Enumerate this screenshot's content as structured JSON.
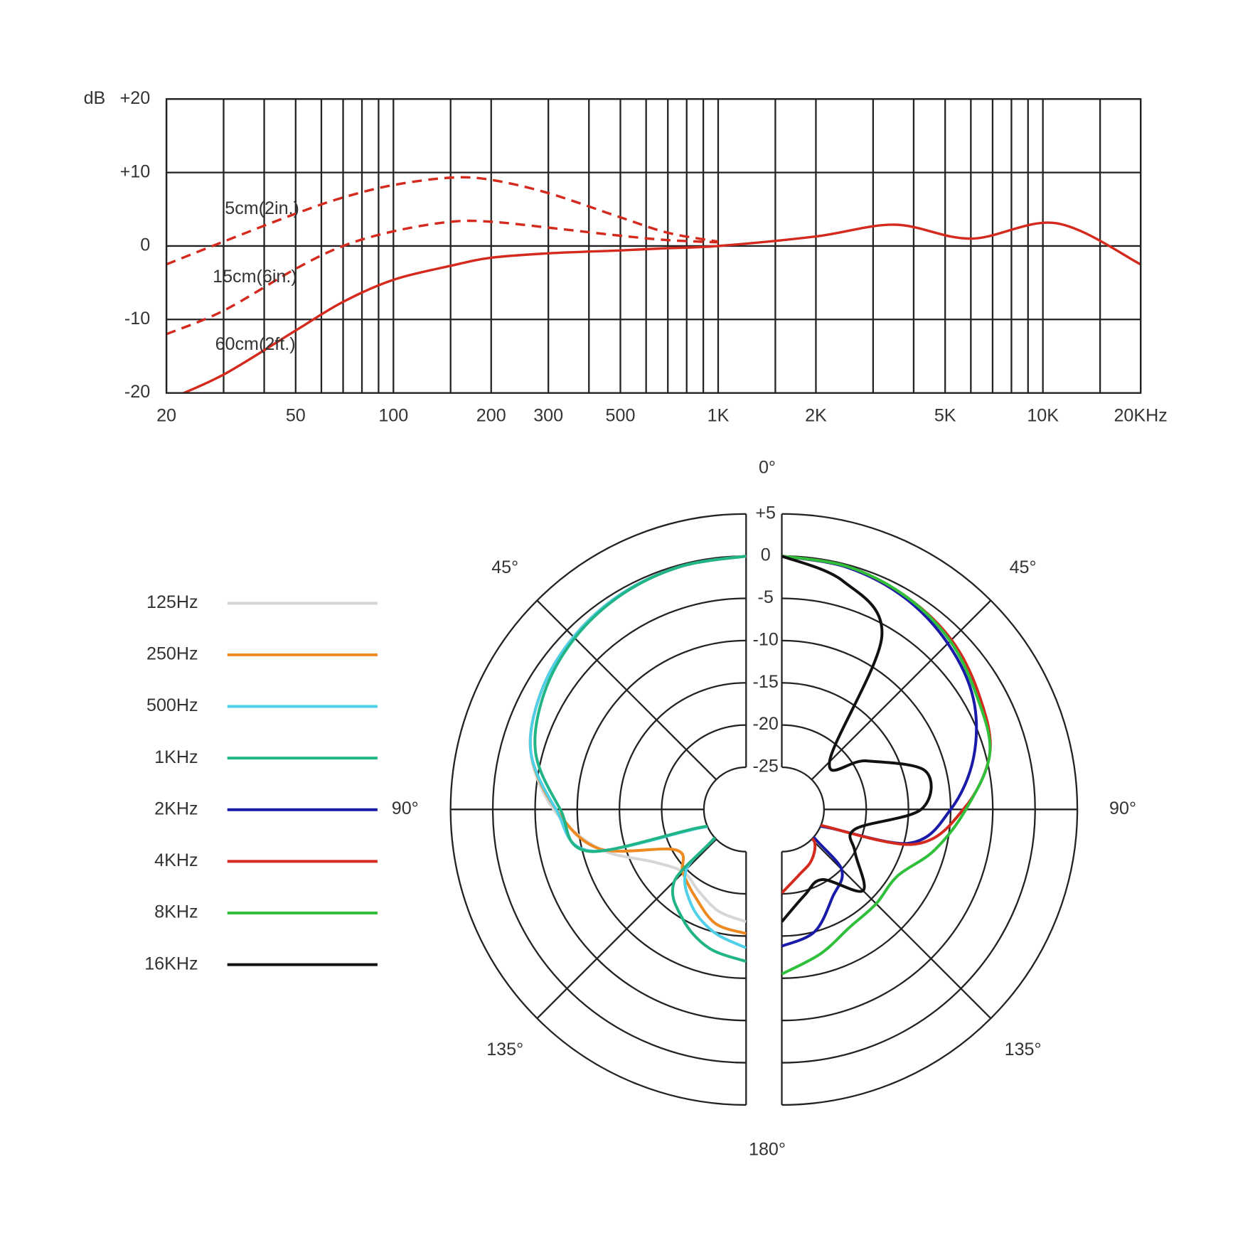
{
  "chart_data": [
    {
      "type": "line",
      "log_x": true,
      "grid": true,
      "y_label": "dB",
      "xlim": [
        20,
        20000
      ],
      "ylim": [
        -20,
        20
      ],
      "xticks": [
        20,
        50,
        100,
        200,
        300,
        500,
        {
          "value": 1000,
          "label": "1K"
        },
        {
          "value": 2000,
          "label": "2K"
        },
        {
          "value": 5000,
          "label": "5K"
        },
        {
          "value": 10000,
          "label": "10K"
        },
        {
          "value": 20000,
          "label": "20KHz"
        }
      ],
      "xminor_ticks": [
        30,
        40,
        60,
        70,
        80,
        90,
        150,
        400,
        600,
        700,
        800,
        900,
        1500,
        3000,
        4000,
        6000,
        7000,
        8000,
        9000,
        15000
      ],
      "yticks": [
        {
          "value": 20,
          "label": "+20"
        },
        {
          "value": 10,
          "label": "+10"
        },
        0,
        -10,
        -20
      ],
      "x": [
        20,
        30,
        50,
        70,
        100,
        150,
        200,
        300,
        500,
        700,
        1000,
        2000,
        3500,
        6000,
        11000,
        20000
      ],
      "series": [
        {
          "name": "5cm(2in.)",
          "color": "#d42a1e",
          "dashed": true,
          "values": [
            -2.5,
            0.6,
            4.4,
            6.6,
            8.3,
            9.3,
            9.0,
            7.2,
            3.9,
            1.8,
            0.6,
            null,
            null,
            null,
            null,
            null
          ]
        },
        {
          "name": "15cm(6in.)",
          "color": "#d42a1e",
          "dashed": true,
          "values": [
            -12,
            -8.8,
            -3.1,
            0,
            2.0,
            3.3,
            3.3,
            2.5,
            1.4,
            0.8,
            0.5,
            null,
            null,
            null,
            null,
            null
          ]
        },
        {
          "name": "60cm(2ft.)",
          "color": "#d42a1e",
          "dashed": false,
          "values": [
            -21,
            -17.5,
            -11.5,
            -7.6,
            -4.6,
            -2.7,
            -1.6,
            -1.0,
            -0.6,
            -0.3,
            0,
            1.3,
            2.9,
            1.0,
            3.1,
            -2.5
          ]
        }
      ]
    },
    {
      "type": "polar",
      "rlim": [
        -30,
        5
      ],
      "rticks": [
        {
          "value": 5,
          "label": "+5"
        },
        0,
        -5,
        -10,
        -15,
        -20,
        -25
      ],
      "thetaticks": [
        {
          "value": 0,
          "label": "0°"
        },
        {
          "value": 45,
          "label": "45°"
        },
        {
          "value": 90,
          "label": "90°"
        },
        {
          "value": 135,
          "label": "135°"
        },
        {
          "value": 180,
          "label": "180°"
        }
      ],
      "theta": [
        0,
        15,
        30,
        45,
        60,
        75,
        90,
        105,
        120,
        135,
        150,
        165,
        180
      ],
      "series": [
        {
          "name": "125Hz",
          "color": "#d6d6d6",
          "side": "left",
          "values": [
            0,
            -0.2,
            -0.5,
            -1.1,
            -2,
            -3.6,
            -7.2,
            -12,
            -17.5,
            -19.5,
            -18.8,
            -17.5,
            -16.7
          ]
        },
        {
          "name": "250Hz",
          "color": "#ee8a22",
          "side": "left",
          "values": [
            0,
            -0.2,
            -0.5,
            -1.1,
            -2,
            -3.6,
            -7.5,
            -12,
            -20.4,
            -19.4,
            -18,
            -16,
            -15.3
          ]
        },
        {
          "name": "500Hz",
          "color": "#4fd0e8",
          "side": "left",
          "values": [
            0,
            -0.2,
            -0.5,
            -1.1,
            -2,
            -3.6,
            -7.5,
            -11,
            -26,
            -20,
            -17,
            -15,
            -13.6
          ]
        },
        {
          "name": "1KHz",
          "color": "#20b487",
          "side": "left",
          "values": [
            0,
            -0.2,
            -0.6,
            -1.3,
            -2.4,
            -4.2,
            -8,
            -10.8,
            -26,
            -18,
            -15,
            -13,
            -12
          ]
        },
        {
          "name": "2KHz",
          "color": "#1a1aa8",
          "side": "right",
          "values": [
            0,
            -0.3,
            -1,
            -2.2,
            -3.8,
            -6.5,
            -10,
            -14.5,
            -26,
            -20,
            -18,
            -15,
            -13.8
          ]
        },
        {
          "name": "4KHz",
          "color": "#d42a1e",
          "side": "right",
          "values": [
            0,
            -0.2,
            -0.8,
            -1.6,
            -3,
            -4.5,
            -8.5,
            -14,
            -27,
            -24.5,
            -23,
            -22,
            -20.1
          ]
        },
        {
          "name": "8KHz",
          "color": "#2fbf3a",
          "side": "right",
          "values": [
            0,
            -0.2,
            -0.8,
            -1.8,
            -3.3,
            -4.5,
            -8.2,
            -11.3,
            -14.2,
            -14.2,
            -13.9,
            -12.3,
            -10.5
          ]
        },
        {
          "name": "16KHz",
          "color": "#111111",
          "side": "right",
          "values": [
            0,
            -2,
            -6.3,
            -22,
            -18.5,
            -12.4,
            -13.5,
            -21,
            -20,
            -16.4,
            -20.4,
            -19.5,
            -16.7
          ]
        }
      ]
    }
  ]
}
